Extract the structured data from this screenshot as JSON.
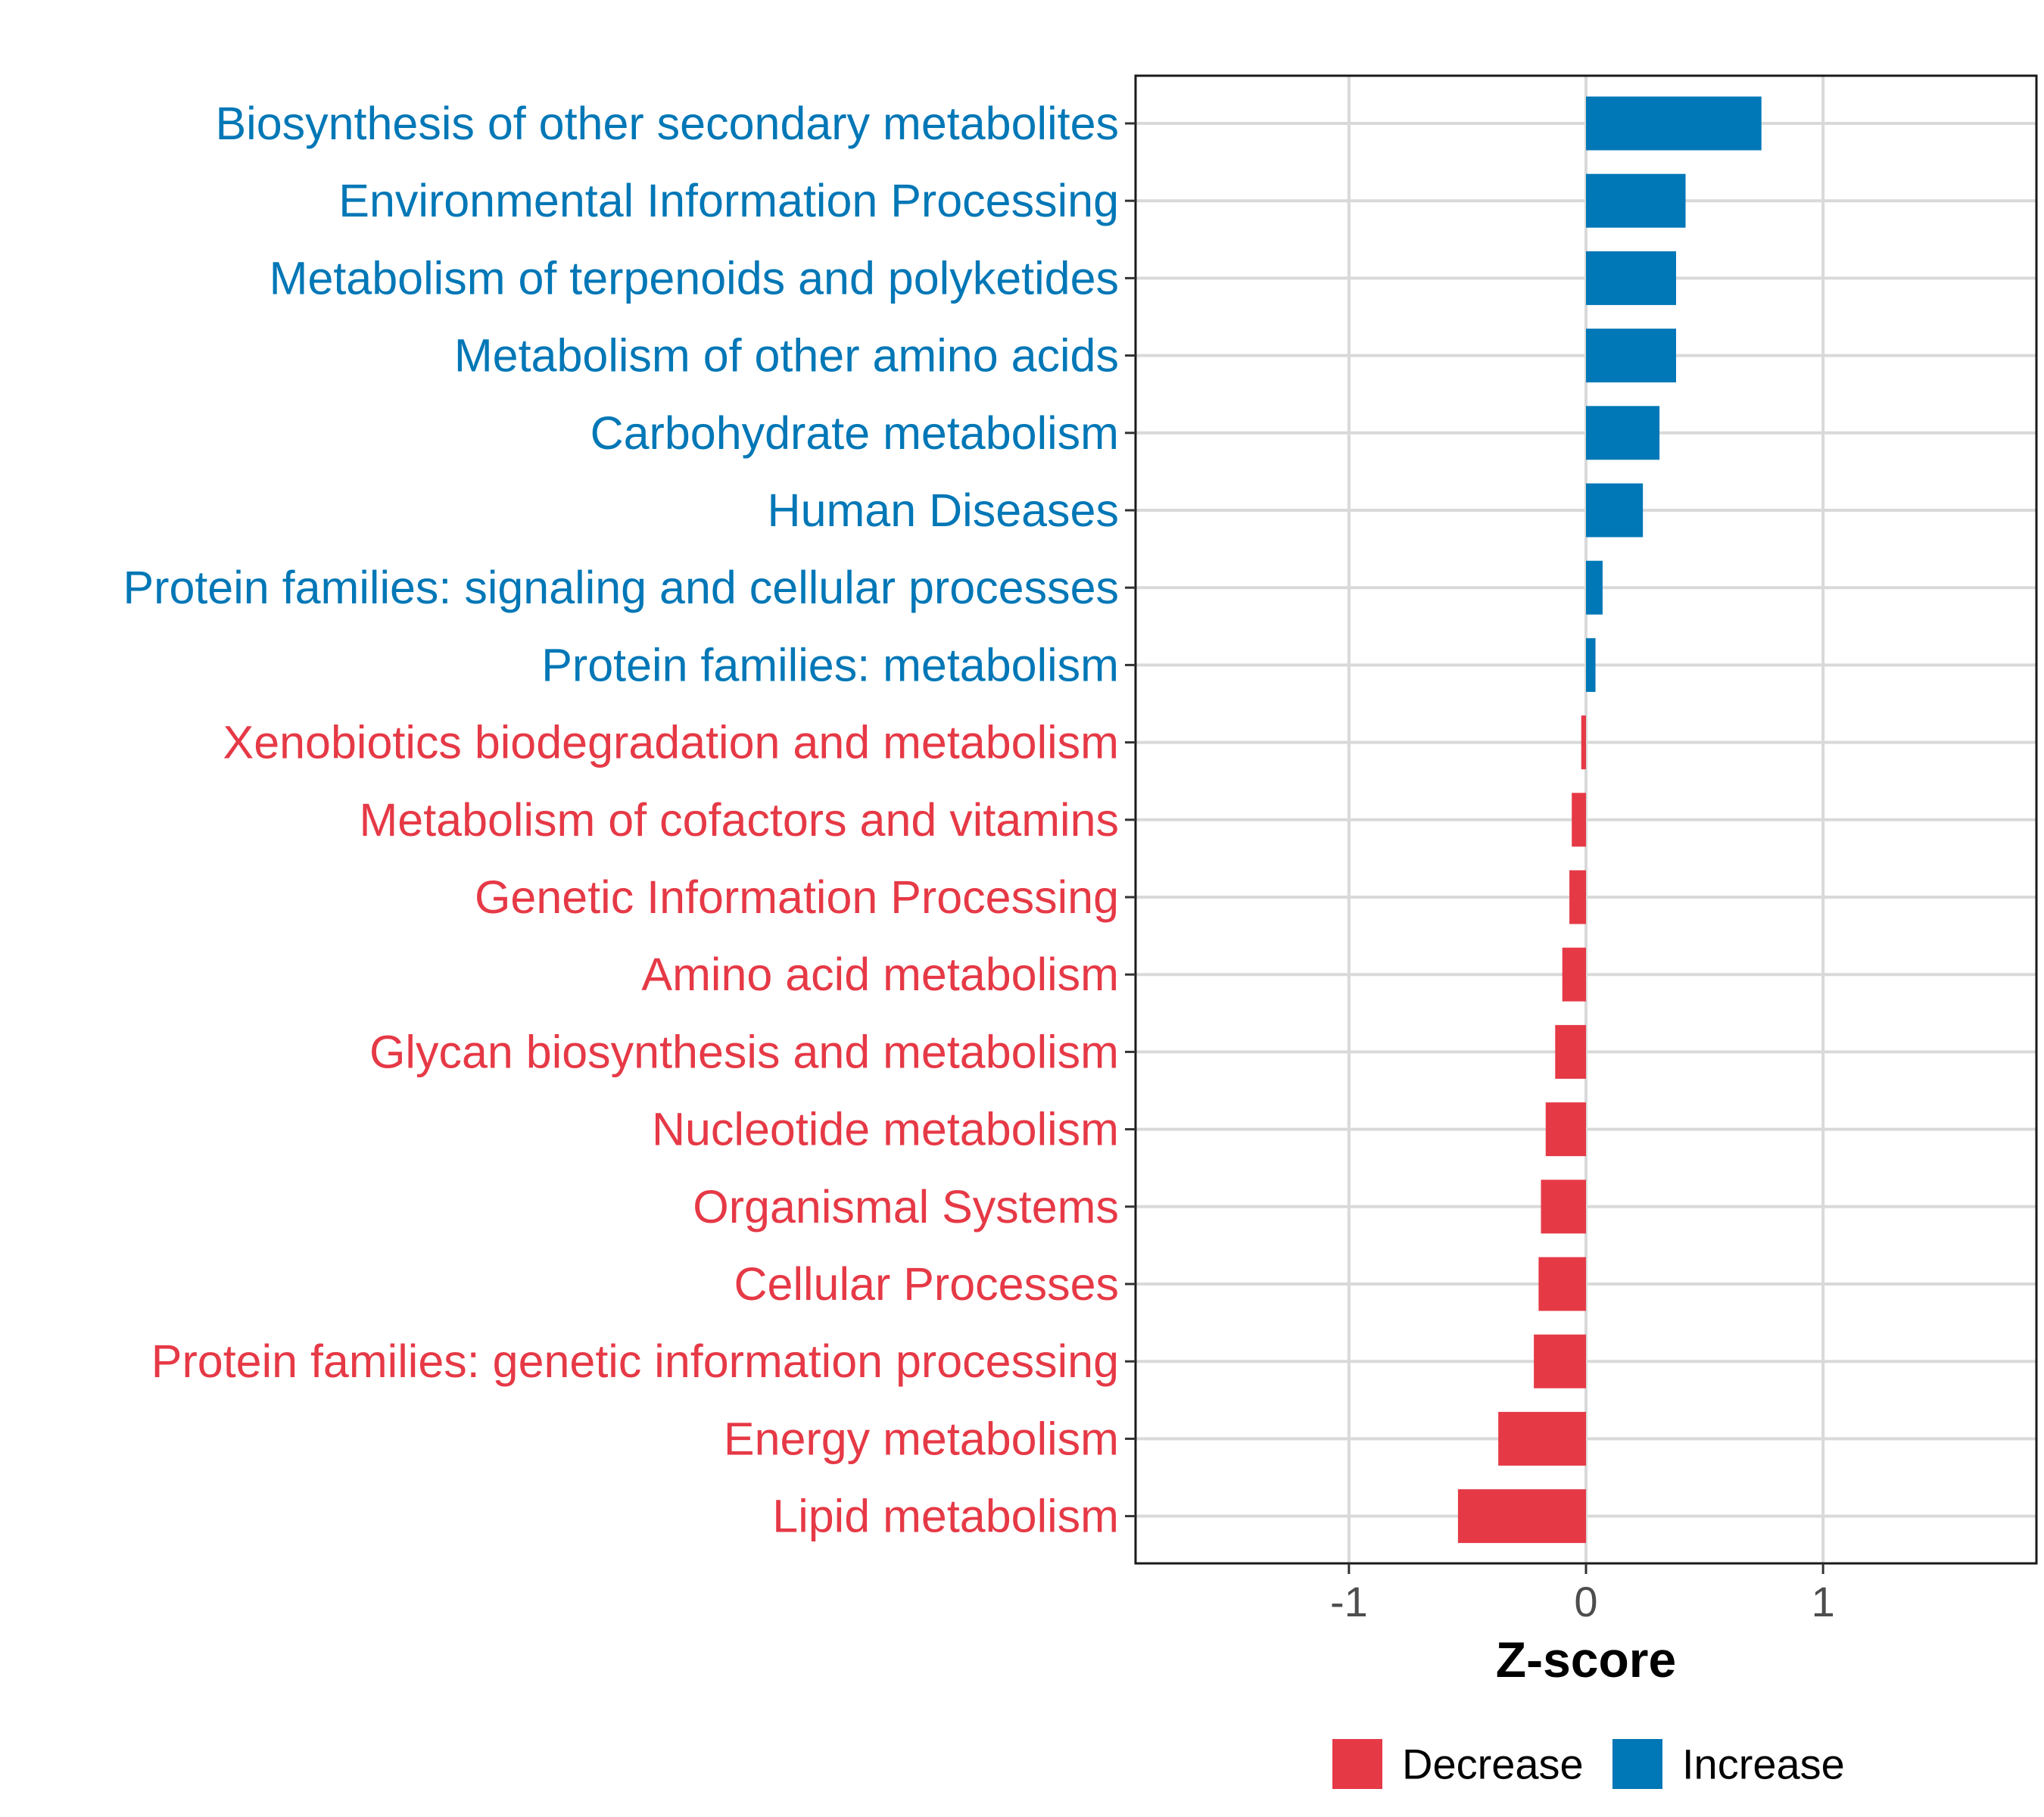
{
  "chart_data": {
    "type": "bar",
    "orientation": "horizontal",
    "title": "",
    "xlabel": "Z-score",
    "ylabel": "",
    "xlim": [
      -1.9,
      1.9
    ],
    "xticks": [
      -1,
      0,
      1
    ],
    "xtick_labels": [
      "-1",
      "0",
      "1"
    ],
    "grid": true,
    "legend_position": "bottom",
    "legend": [
      {
        "name": "Decrease",
        "color": "#e63946"
      },
      {
        "name": "Increase",
        "color": "#0077b6"
      }
    ],
    "categories": [
      "Biosynthesis of other secondary metabolites",
      "Environmental Information Processing",
      "Metabolism of terpenoids and polyketides",
      "Metabolism of other amino acids",
      "Carbohydrate metabolism",
      "Human Diseases",
      "Protein families: signaling and cellular processes",
      "Protein families: metabolism",
      "Xenobiotics biodegradation and metabolism",
      "Metabolism of cofactors and vitamins",
      "Genetic Information Processing",
      "Amino acid metabolism",
      "Glycan biosynthesis and metabolism",
      "Nucleotide metabolism",
      "Organismal Systems",
      "Cellular Processes",
      "Protein families: genetic information processing",
      "Energy metabolism",
      "Lipid metabolism"
    ],
    "values": [
      0.74,
      0.42,
      0.38,
      0.38,
      0.31,
      0.24,
      0.07,
      0.04,
      -0.02,
      -0.06,
      -0.07,
      -0.1,
      -0.13,
      -0.17,
      -0.19,
      -0.2,
      -0.22,
      -0.37,
      -0.54
    ],
    "groups": [
      "Increase",
      "Increase",
      "Increase",
      "Increase",
      "Increase",
      "Increase",
      "Increase",
      "Increase",
      "Decrease",
      "Decrease",
      "Decrease",
      "Decrease",
      "Decrease",
      "Decrease",
      "Decrease",
      "Decrease",
      "Decrease",
      "Decrease",
      "Decrease"
    ]
  }
}
